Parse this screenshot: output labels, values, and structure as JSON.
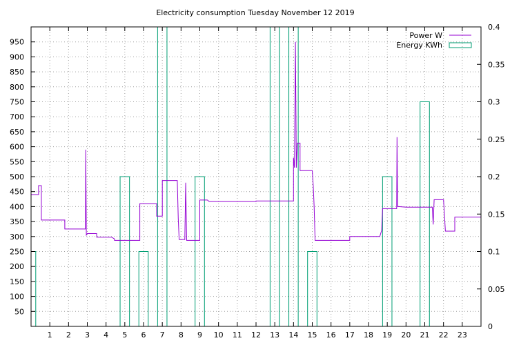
{
  "chart_data": {
    "type": "line",
    "title": "Electricity consumption Tuesday November 12 2019",
    "x_range": [
      0,
      24
    ],
    "x_ticks": [
      "1",
      "2",
      "3",
      "4",
      "5",
      "6",
      "7",
      "8",
      "9",
      "10",
      "11",
      "12",
      "13",
      "14",
      "15",
      "16",
      "17",
      "18",
      "19",
      "20",
      "21",
      "22",
      "23"
    ],
    "y_left": {
      "range": [
        0,
        1000
      ],
      "ticks": [
        "50",
        "100",
        "150",
        "200",
        "250",
        "300",
        "350",
        "400",
        "450",
        "500",
        "550",
        "600",
        "650",
        "700",
        "750",
        "800",
        "850",
        "900",
        "950"
      ]
    },
    "y_right": {
      "range": [
        0,
        0.4
      ],
      "ticks": [
        "0",
        "0.05",
        "0.1",
        "0.15",
        "0.2",
        "0.25",
        "0.3",
        "0.35",
        "0.4"
      ]
    },
    "grid": true,
    "legend_position": "top-right",
    "series": [
      {
        "name": "Power W",
        "axis": "left",
        "color": "#9400d3",
        "style": "line",
        "points": [
          [
            0.0,
            440
          ],
          [
            0.4,
            440
          ],
          [
            0.4,
            470
          ],
          [
            0.55,
            470
          ],
          [
            0.55,
            355
          ],
          [
            1.8,
            355
          ],
          [
            1.8,
            325
          ],
          [
            2.9,
            325
          ],
          [
            2.92,
            590
          ],
          [
            2.95,
            305
          ],
          [
            3.0,
            310
          ],
          [
            3.5,
            310
          ],
          [
            3.5,
            298
          ],
          [
            4.3,
            298
          ],
          [
            4.45,
            292
          ],
          [
            4.45,
            287
          ],
          [
            5.8,
            287
          ],
          [
            5.8,
            410
          ],
          [
            6.7,
            410
          ],
          [
            6.7,
            368
          ],
          [
            7.0,
            368
          ],
          [
            7.0,
            487
          ],
          [
            7.8,
            487
          ],
          [
            7.85,
            360
          ],
          [
            7.9,
            290
          ],
          [
            8.2,
            290
          ],
          [
            8.25,
            480
          ],
          [
            8.3,
            287
          ],
          [
            9.0,
            287
          ],
          [
            9.0,
            422
          ],
          [
            9.4,
            422
          ],
          [
            9.5,
            417
          ],
          [
            12.0,
            417
          ],
          [
            12.0,
            419
          ],
          [
            14.0,
            419
          ],
          [
            14.0,
            563
          ],
          [
            14.05,
            530
          ],
          [
            14.1,
            950
          ],
          [
            14.15,
            530
          ],
          [
            14.2,
            612
          ],
          [
            14.35,
            612
          ],
          [
            14.35,
            520
          ],
          [
            15.0,
            520
          ],
          [
            15.05,
            470
          ],
          [
            15.1,
            400
          ],
          [
            15.15,
            287
          ],
          [
            17.0,
            287
          ],
          [
            17.0,
            300
          ],
          [
            18.6,
            300
          ],
          [
            18.7,
            320
          ],
          [
            18.75,
            393
          ],
          [
            19.5,
            393
          ],
          [
            19.52,
            632
          ],
          [
            19.55,
            400
          ],
          [
            19.6,
            400
          ],
          [
            20.0,
            398
          ],
          [
            21.4,
            398
          ],
          [
            21.45,
            340
          ],
          [
            21.5,
            423
          ],
          [
            22.0,
            423
          ],
          [
            22.1,
            318
          ],
          [
            22.6,
            318
          ],
          [
            22.6,
            365
          ],
          [
            24.0,
            365
          ]
        ]
      },
      {
        "name": "Energy KWh",
        "axis": "right",
        "color": "#009e73",
        "style": "boxes",
        "boxes": [
          [
            0.0,
            0.25,
            0.1
          ],
          [
            4.75,
            5.25,
            0.2
          ],
          [
            5.75,
            6.25,
            0.1
          ],
          [
            6.75,
            7.25,
            0.4
          ],
          [
            8.75,
            9.25,
            0.2
          ],
          [
            12.75,
            13.25,
            0.4
          ],
          [
            13.25,
            13.75,
            0.4
          ],
          [
            13.75,
            14.25,
            0.4
          ],
          [
            14.75,
            15.25,
            0.1
          ],
          [
            18.75,
            19.25,
            0.2
          ],
          [
            20.75,
            21.25,
            0.3
          ]
        ]
      }
    ]
  }
}
